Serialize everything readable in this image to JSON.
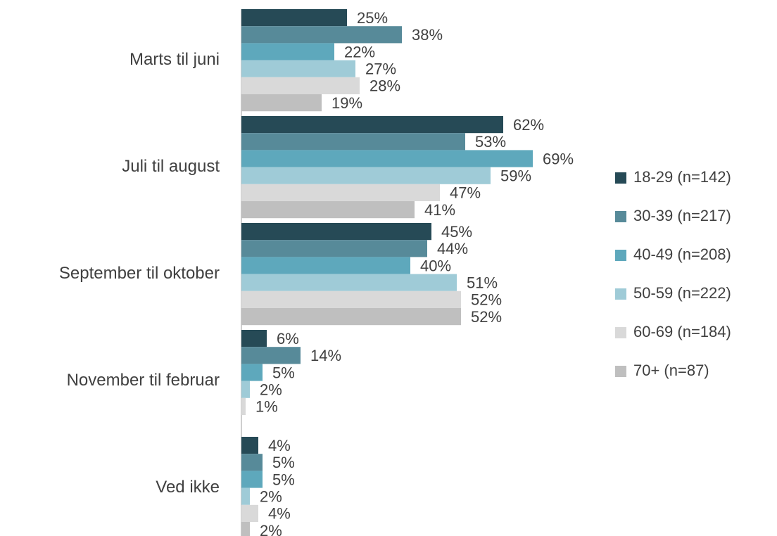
{
  "chart_data": {
    "type": "hbar",
    "categories": [
      "Marts til juni",
      "Juli til august",
      "September til oktober",
      "November til februar",
      "Ved ikke"
    ],
    "series": [
      {
        "name": "18-29 (n=142)",
        "color": "#264a56",
        "values": [
          25,
          62,
          45,
          6,
          4
        ],
        "value_labels": [
          "25%",
          "62%",
          "45%",
          "6%",
          "4%"
        ]
      },
      {
        "name": "30-39 (n=217)",
        "color": "#578a99",
        "values": [
          38,
          53,
          44,
          14,
          5
        ],
        "value_labels": [
          "38%",
          "53%",
          "44%",
          "14%",
          "5%"
        ]
      },
      {
        "name": "40-49 (n=208)",
        "color": "#5ea8bc",
        "values": [
          22,
          69,
          40,
          5,
          5
        ],
        "value_labels": [
          "22%",
          "69%",
          "40%",
          "5%",
          "5%"
        ]
      },
      {
        "name": "50-59 (n=222)",
        "color": "#9fcbd7",
        "values": [
          27,
          59,
          51,
          2,
          2
        ],
        "value_labels": [
          "27%",
          "59%",
          "51%",
          "2%",
          "2%"
        ]
      },
      {
        "name": "60-69 (n=184)",
        "color": "#d9d9d9",
        "values": [
          28,
          47,
          52,
          1,
          4
        ],
        "value_labels": [
          "28%",
          "47%",
          "52%",
          "1%",
          "4%"
        ]
      },
      {
        "name": "70+ (n=87)",
        "color": "#bfbfbf",
        "values": [
          19,
          41,
          52,
          null,
          2
        ],
        "value_labels": [
          "19%",
          "41%",
          "52%",
          null,
          "2%"
        ]
      }
    ],
    "legend": "right"
  }
}
